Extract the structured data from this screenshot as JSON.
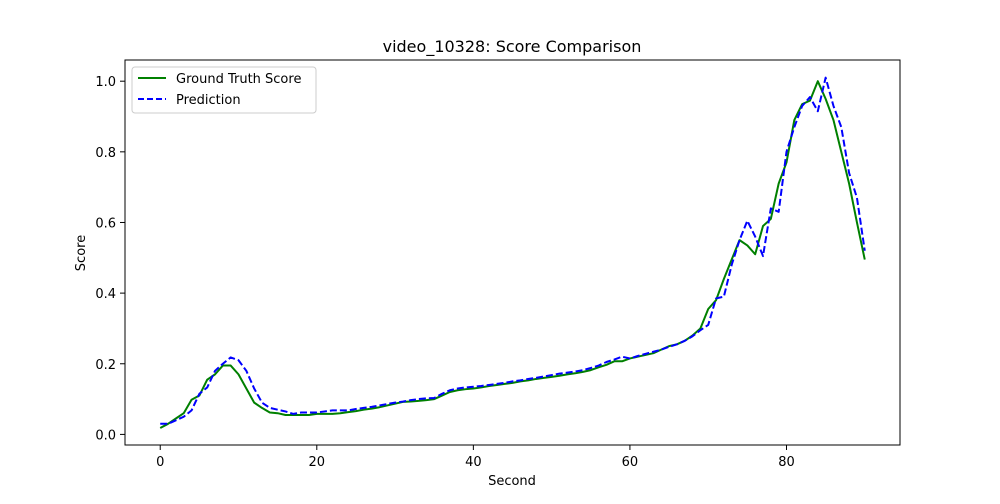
{
  "chart_data": {
    "type": "line",
    "title": "video_10328: Score Comparison",
    "xlabel": "Second",
    "ylabel": "Score",
    "xlim": [
      -4.5,
      94.5
    ],
    "ylim": [
      -0.03,
      1.06
    ],
    "x_ticks": [
      0,
      20,
      40,
      60,
      80
    ],
    "x_tick_labels": [
      "0",
      "20",
      "40",
      "60",
      "80"
    ],
    "y_ticks": [
      0.0,
      0.2,
      0.4,
      0.6,
      0.8,
      1.0
    ],
    "y_tick_labels": [
      "0.0",
      "0.2",
      "0.4",
      "0.6",
      "0.8",
      "1.0"
    ],
    "grid": false,
    "legend": {
      "position": "upper-left",
      "entries": [
        "Ground Truth Score",
        "Prediction"
      ]
    },
    "series": [
      {
        "name": "Ground Truth Score",
        "color": "#008000",
        "style": "solid",
        "x": [
          0,
          1,
          2,
          3,
          4,
          5,
          6,
          7,
          8,
          9,
          10,
          11,
          12,
          13,
          14,
          15,
          16,
          17,
          18,
          19,
          20,
          21,
          22,
          23,
          24,
          25,
          26,
          27,
          28,
          29,
          30,
          31,
          32,
          33,
          34,
          35,
          36,
          37,
          38,
          39,
          40,
          41,
          42,
          43,
          44,
          45,
          46,
          47,
          48,
          49,
          50,
          51,
          52,
          53,
          54,
          55,
          56,
          57,
          58,
          59,
          60,
          61,
          62,
          63,
          64,
          65,
          66,
          67,
          68,
          69,
          70,
          71,
          72,
          73,
          74,
          75,
          76,
          77,
          78,
          79,
          80,
          81,
          82,
          83,
          84,
          85,
          86,
          87,
          88,
          89,
          90
        ],
        "y": [
          0.018,
          0.03,
          0.045,
          0.06,
          0.098,
          0.11,
          0.155,
          0.17,
          0.195,
          0.195,
          0.17,
          0.13,
          0.09,
          0.075,
          0.062,
          0.06,
          0.055,
          0.055,
          0.055,
          0.055,
          0.058,
          0.058,
          0.058,
          0.06,
          0.063,
          0.066,
          0.07,
          0.073,
          0.077,
          0.082,
          0.087,
          0.092,
          0.093,
          0.095,
          0.097,
          0.1,
          0.11,
          0.12,
          0.125,
          0.128,
          0.13,
          0.133,
          0.137,
          0.14,
          0.143,
          0.146,
          0.15,
          0.153,
          0.157,
          0.16,
          0.163,
          0.166,
          0.17,
          0.173,
          0.177,
          0.182,
          0.19,
          0.197,
          0.207,
          0.207,
          0.215,
          0.22,
          0.225,
          0.23,
          0.24,
          0.25,
          0.255,
          0.265,
          0.28,
          0.3,
          0.355,
          0.38,
          0.44,
          0.495,
          0.55,
          0.535,
          0.51,
          0.59,
          0.61,
          0.71,
          0.77,
          0.89,
          0.935,
          0.945,
          1.0,
          0.95,
          0.89,
          0.8,
          0.71,
          0.6,
          0.495
        ]
      },
      {
        "name": "Prediction",
        "color": "#0000ff",
        "style": "dashed",
        "x": [
          0,
          1,
          2,
          3,
          4,
          5,
          6,
          7,
          8,
          9,
          10,
          11,
          12,
          13,
          14,
          15,
          16,
          17,
          18,
          19,
          20,
          21,
          22,
          23,
          24,
          25,
          26,
          27,
          28,
          29,
          30,
          31,
          32,
          33,
          34,
          35,
          36,
          37,
          38,
          39,
          40,
          41,
          42,
          43,
          44,
          45,
          46,
          47,
          48,
          49,
          50,
          51,
          52,
          53,
          54,
          55,
          56,
          57,
          58,
          59,
          60,
          61,
          62,
          63,
          64,
          65,
          66,
          67,
          68,
          69,
          70,
          71,
          72,
          73,
          74,
          75,
          76,
          77,
          78,
          79,
          80,
          81,
          82,
          83,
          84,
          85,
          86,
          87,
          88,
          89,
          90
        ],
        "y": [
          0.03,
          0.03,
          0.04,
          0.05,
          0.068,
          0.115,
          0.133,
          0.18,
          0.2,
          0.218,
          0.21,
          0.18,
          0.13,
          0.09,
          0.075,
          0.07,
          0.065,
          0.058,
          0.062,
          0.062,
          0.062,
          0.065,
          0.068,
          0.068,
          0.068,
          0.072,
          0.075,
          0.078,
          0.082,
          0.086,
          0.09,
          0.093,
          0.097,
          0.1,
          0.102,
          0.103,
          0.115,
          0.125,
          0.13,
          0.133,
          0.135,
          0.137,
          0.14,
          0.143,
          0.146,
          0.15,
          0.153,
          0.157,
          0.16,
          0.164,
          0.168,
          0.172,
          0.175,
          0.178,
          0.182,
          0.188,
          0.195,
          0.205,
          0.212,
          0.22,
          0.215,
          0.222,
          0.228,
          0.234,
          0.24,
          0.248,
          0.255,
          0.265,
          0.278,
          0.295,
          0.31,
          0.385,
          0.39,
          0.48,
          0.55,
          0.605,
          0.56,
          0.505,
          0.64,
          0.63,
          0.8,
          0.87,
          0.93,
          0.955,
          0.915,
          1.01,
          0.93,
          0.87,
          0.74,
          0.67,
          0.52
        ]
      }
    ]
  }
}
